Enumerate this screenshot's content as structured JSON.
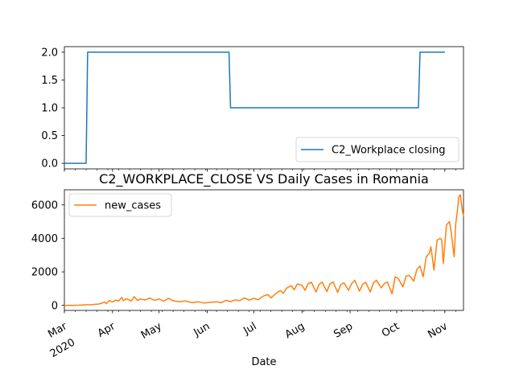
{
  "chart_data": [
    {
      "type": "line",
      "title": "",
      "xlabel": "",
      "ylabel": "",
      "ylim": [
        -0.1,
        2.1
      ],
      "yticks": [
        "0.0",
        "0.5",
        "1.0",
        "1.5",
        "2.0"
      ],
      "ytick_values": [
        0,
        0.5,
        1.0,
        1.5,
        2.0
      ],
      "legend_position": "lower right",
      "series": [
        {
          "name": "C2_Workplace closing",
          "color": "#1f77b4",
          "points": [
            [
              "2020-03-01",
              0
            ],
            [
              "2020-03-15",
              0
            ],
            [
              "2020-03-16",
              2
            ],
            [
              "2020-06-15",
              2
            ],
            [
              "2020-06-16",
              1
            ],
            [
              "2020-10-15",
              1
            ],
            [
              "2020-10-16",
              2
            ],
            [
              "2020-11-01",
              2
            ]
          ]
        }
      ]
    },
    {
      "type": "line",
      "title": "C2_WORKPLACE_CLOSE VS Daily Cases in Romania",
      "xlabel": "Date",
      "ylabel": "",
      "ylim": [
        -300,
        6900
      ],
      "yticks": [
        "0",
        "2000",
        "4000",
        "6000"
      ],
      "ytick_values": [
        0,
        2000,
        4000,
        6000
      ],
      "legend_position": "upper left",
      "xticks": [
        {
          "date": "2020-03-01",
          "label": "Mar",
          "sub": "2020"
        },
        {
          "date": "2020-04-01",
          "label": "Apr"
        },
        {
          "date": "2020-05-01",
          "label": "May"
        },
        {
          "date": "2020-06-01",
          "label": "Jun"
        },
        {
          "date": "2020-07-01",
          "label": "Jul"
        },
        {
          "date": "2020-08-01",
          "label": "Aug"
        },
        {
          "date": "2020-09-01",
          "label": "Sep"
        },
        {
          "date": "2020-10-01",
          "label": "Oct"
        },
        {
          "date": "2020-11-01",
          "label": "Nov"
        }
      ],
      "series": [
        {
          "name": "new_cases",
          "color": "#ff7f0e",
          "points": [
            [
              "2020-03-01",
              3
            ],
            [
              "2020-03-05",
              4
            ],
            [
              "2020-03-10",
              10
            ],
            [
              "2020-03-15",
              35
            ],
            [
              "2020-03-18",
              40
            ],
            [
              "2020-03-20",
              60
            ],
            [
              "2020-03-23",
              80
            ],
            [
              "2020-03-25",
              130
            ],
            [
              "2020-03-27",
              200
            ],
            [
              "2020-03-28",
              110
            ],
            [
              "2020-03-30",
              300
            ],
            [
              "2020-04-01",
              200
            ],
            [
              "2020-04-03",
              320
            ],
            [
              "2020-04-05",
              260
            ],
            [
              "2020-04-07",
              480
            ],
            [
              "2020-04-08",
              280
            ],
            [
              "2020-04-10",
              400
            ],
            [
              "2020-04-13",
              260
            ],
            [
              "2020-04-15",
              520
            ],
            [
              "2020-04-17",
              300
            ],
            [
              "2020-04-19",
              380
            ],
            [
              "2020-04-22",
              320
            ],
            [
              "2020-04-25",
              440
            ],
            [
              "2020-04-28",
              300
            ],
            [
              "2020-05-01",
              380
            ],
            [
              "2020-05-04",
              250
            ],
            [
              "2020-05-07",
              420
            ],
            [
              "2020-05-10",
              280
            ],
            [
              "2020-05-14",
              220
            ],
            [
              "2020-05-18",
              260
            ],
            [
              "2020-05-22",
              160
            ],
            [
              "2020-05-26",
              220
            ],
            [
              "2020-05-30",
              140
            ],
            [
              "2020-06-03",
              180
            ],
            [
              "2020-06-07",
              220
            ],
            [
              "2020-06-10",
              160
            ],
            [
              "2020-06-13",
              300
            ],
            [
              "2020-06-16",
              230
            ],
            [
              "2020-06-19",
              330
            ],
            [
              "2020-06-22",
              280
            ],
            [
              "2020-06-25",
              450
            ],
            [
              "2020-06-28",
              310
            ],
            [
              "2020-07-01",
              420
            ],
            [
              "2020-07-04",
              340
            ],
            [
              "2020-07-07",
              550
            ],
            [
              "2020-07-10",
              650
            ],
            [
              "2020-07-12",
              450
            ],
            [
              "2020-07-15",
              700
            ],
            [
              "2020-07-18",
              890
            ],
            [
              "2020-07-20",
              720
            ],
            [
              "2020-07-22",
              1030
            ],
            [
              "2020-07-25",
              1180
            ],
            [
              "2020-07-27",
              930
            ],
            [
              "2020-07-29",
              1280
            ],
            [
              "2020-08-01",
              1200
            ],
            [
              "2020-08-03",
              900
            ],
            [
              "2020-08-05",
              1300
            ],
            [
              "2020-08-07",
              1380
            ],
            [
              "2020-08-10",
              800
            ],
            [
              "2020-08-12",
              1250
            ],
            [
              "2020-08-14",
              1390
            ],
            [
              "2020-08-17",
              820
            ],
            [
              "2020-08-19",
              1280
            ],
            [
              "2020-08-21",
              1400
            ],
            [
              "2020-08-24",
              770
            ],
            [
              "2020-08-26",
              1240
            ],
            [
              "2020-08-28",
              1350
            ],
            [
              "2020-08-31",
              900
            ],
            [
              "2020-09-02",
              1300
            ],
            [
              "2020-09-04",
              1500
            ],
            [
              "2020-09-07",
              850
            ],
            [
              "2020-09-09",
              1250
            ],
            [
              "2020-09-11",
              1380
            ],
            [
              "2020-09-14",
              800
            ],
            [
              "2020-09-16",
              1350
            ],
            [
              "2020-09-18",
              1500
            ],
            [
              "2020-09-21",
              1050
            ],
            [
              "2020-09-23",
              1300
            ],
            [
              "2020-09-25",
              1400
            ],
            [
              "2020-09-28",
              700
            ],
            [
              "2020-09-30",
              1700
            ],
            [
              "2020-10-02",
              1600
            ],
            [
              "2020-10-05",
              1100
            ],
            [
              "2020-10-07",
              1750
            ],
            [
              "2020-10-09",
              1800
            ],
            [
              "2020-10-12",
              1450
            ],
            [
              "2020-10-14",
              2150
            ],
            [
              "2020-10-16",
              2350
            ],
            [
              "2020-10-18",
              1700
            ],
            [
              "2020-10-20",
              2900
            ],
            [
              "2020-10-22",
              3100
            ],
            [
              "2020-10-23",
              3500
            ],
            [
              "2020-10-25",
              2100
            ],
            [
              "2020-10-27",
              3900
            ],
            [
              "2020-10-29",
              4000
            ],
            [
              "2020-10-30",
              3900
            ],
            [
              "2020-10-31",
              2500
            ],
            [
              "2020-11-02",
              4800
            ],
            [
              "2020-11-04",
              5000
            ],
            [
              "2020-11-05",
              4400
            ],
            [
              "2020-11-07",
              2900
            ],
            [
              "2020-11-08",
              4900
            ],
            [
              "2020-11-09",
              5600
            ],
            [
              "2020-11-10",
              6500
            ],
            [
              "2020-11-11",
              6600
            ],
            [
              "2020-11-12",
              5800
            ],
            [
              "2020-11-13",
              5300
            ]
          ]
        }
      ]
    }
  ]
}
